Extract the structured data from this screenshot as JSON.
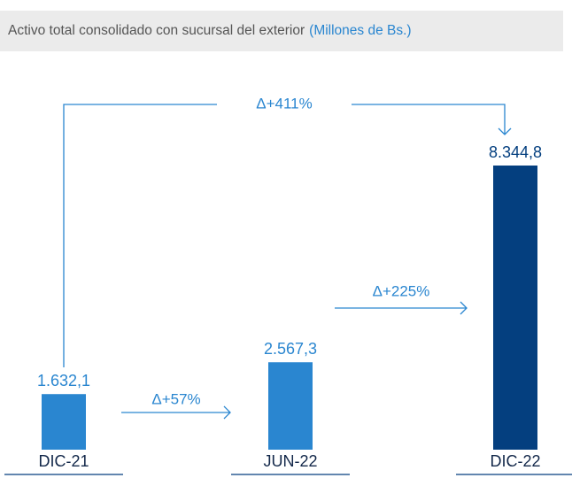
{
  "chart_data": {
    "type": "bar",
    "title": "Activo total consolidado con sucursal del exterior",
    "subtitle": "(Millones de Bs.)",
    "categories": [
      "DIC-21",
      "JUN-22",
      "DIC-22"
    ],
    "values": [
      1632.1,
      2567.3,
      8344.8
    ],
    "value_labels": [
      "1.632,1",
      "2.567,3",
      "8.344,8"
    ],
    "colors": [
      "#2a86d0",
      "#2a86d0",
      "#043f7f"
    ],
    "annotations": [
      "Δ+411%",
      "Δ+57%",
      "Δ+225%"
    ]
  }
}
